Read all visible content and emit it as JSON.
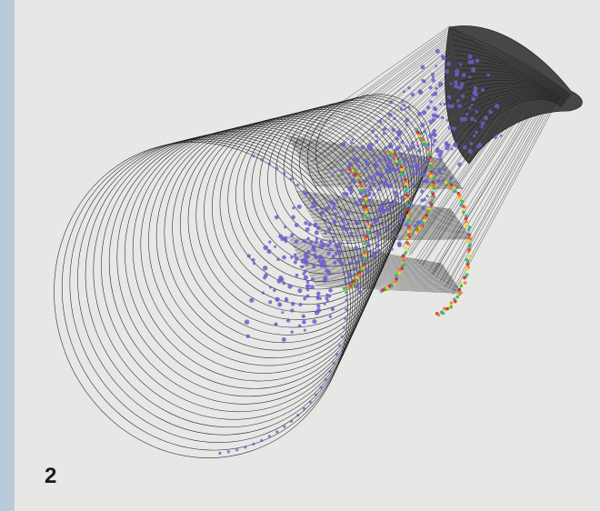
{
  "figure": {
    "label": "2",
    "colors": {
      "frame": "#b9cadb",
      "panel": "#e7e7e6",
      "mesh": "#111111",
      "points_primary": "#6a5fc8",
      "points_hot": [
        "#e8261c",
        "#f07a1a",
        "#f3d21d",
        "#3bbf3b",
        "#2ea6c9"
      ]
    }
  }
}
